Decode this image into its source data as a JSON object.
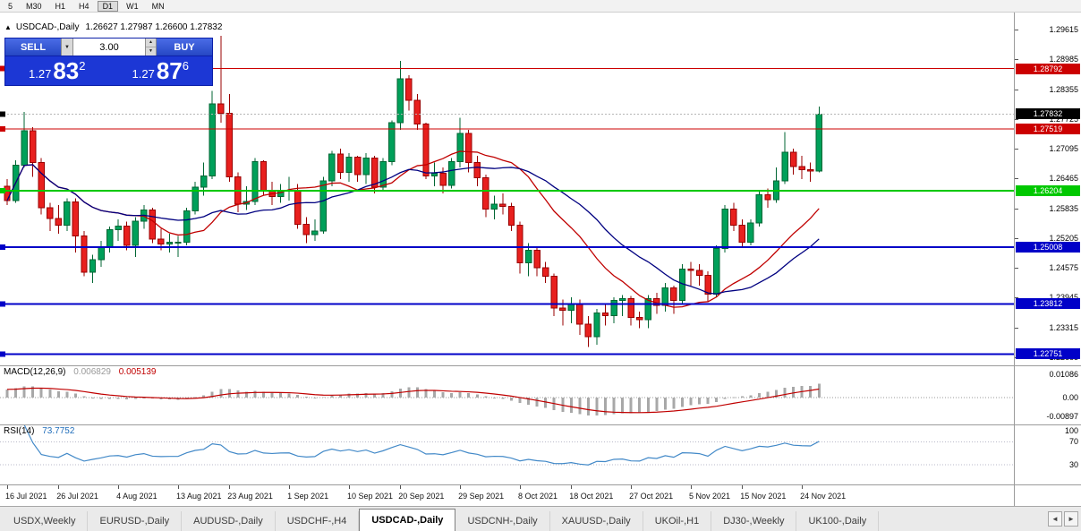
{
  "window": {
    "timeframes": [
      "5",
      "M30",
      "H1",
      "H4",
      "D1",
      "W1",
      "MN"
    ],
    "active_timeframe": "D1"
  },
  "chart": {
    "title": "USDCAD-,Daily",
    "ohlc": "1.26627 1.27987 1.26600 1.27832"
  },
  "trade_panel": {
    "sell_label": "SELL",
    "buy_label": "BUY",
    "volume": "3.00",
    "sell_price": {
      "prefix": "1.27",
      "big": "83",
      "sup": "2"
    },
    "buy_price": {
      "prefix": "1.27",
      "big": "87",
      "sup": "6"
    }
  },
  "indicators": {
    "macd": {
      "name": "MACD(12,26,9)",
      "value": "0.006829",
      "signal_value": "0.005139",
      "fast": 12,
      "slow": 26,
      "signal": 9,
      "range": [
        -0.0126,
        0.0147
      ],
      "axis": [
        {
          "text": "0.01086",
          "v": 0.01086
        },
        {
          "text": "0.00",
          "v": 0
        },
        {
          "text": "-0.00897",
          "v": -0.00897
        }
      ]
    },
    "rsi": {
      "name": "RSI(14)",
      "value": "73.7752",
      "period": 14,
      "range": [
        -5,
        99
      ],
      "guides": [
        70,
        30
      ],
      "axis": [
        {
          "text": "100",
          "v": 100
        },
        {
          "text": "70",
          "v": 70
        },
        {
          "text": "30",
          "v": 30
        }
      ]
    }
  },
  "chart_data": {
    "type": "candlestick",
    "symbol": "USDCAD",
    "period": "Daily",
    "ohlc_current": {
      "open": 1.26627,
      "high": 1.27987,
      "low": 1.266,
      "close": 1.27832
    },
    "y_range": [
      1.2251,
      1.2998
    ],
    "y_ticks": [
      1.29615,
      1.28985,
      1.28355,
      1.27725,
      1.27095,
      1.26465,
      1.25835,
      1.25205,
      1.24575,
      1.23945,
      1.23315,
      1.22685
    ],
    "bid": {
      "value": 1.27832
    },
    "levels": [
      {
        "value": 1.28792,
        "color": "#CC0000",
        "width": 1
      },
      {
        "value": 1.27519,
        "color": "#CC0000",
        "width": 1
      },
      {
        "value": 1.26204,
        "color": "#00C800",
        "width": 2
      },
      {
        "value": 1.25008,
        "color": "#0000C8",
        "width": 2
      },
      {
        "value": 1.23812,
        "color": "#0000C8",
        "width": 2
      },
      {
        "value": 1.22751,
        "color": "#0000C8",
        "width": 2
      }
    ],
    "moving_averages": [
      {
        "type": "sma",
        "period": 16,
        "color": "#C00000"
      },
      {
        "type": "sma",
        "period": 24,
        "color": "#000080"
      }
    ],
    "x_labels": [
      [
        0,
        "16 Jul 2021"
      ],
      [
        6,
        "26 Jul 2021"
      ],
      [
        13,
        "4 Aug 2021"
      ],
      [
        20,
        "13 Aug 2021"
      ],
      [
        26,
        "23 Aug 2021"
      ],
      [
        33,
        "1 Sep 2021"
      ],
      [
        40,
        "10 Sep 2021"
      ],
      [
        46,
        "20 Sep 2021"
      ],
      [
        53,
        "29 Sep 2021"
      ],
      [
        60,
        "8 Oct 2021"
      ],
      [
        66,
        "18 Oct 2021"
      ],
      [
        73,
        "27 Oct 2021"
      ],
      [
        80,
        "5 Nov 2021"
      ],
      [
        86,
        "15 Nov 2021"
      ],
      [
        93,
        "24 Nov 2021"
      ]
    ],
    "candles": [
      [
        1.263,
        1.2645,
        1.259,
        1.26
      ],
      [
        1.26,
        1.2685,
        1.2595,
        1.2675
      ],
      [
        1.2675,
        1.2788,
        1.267,
        1.2748
      ],
      [
        1.2748,
        1.2755,
        1.265,
        1.268
      ],
      [
        1.268,
        1.269,
        1.257,
        1.2585
      ],
      [
        1.2585,
        1.2595,
        1.2535,
        1.2562
      ],
      [
        1.2562,
        1.259,
        1.253,
        1.2548
      ],
      [
        1.2548,
        1.2605,
        1.2535,
        1.2597
      ],
      [
        1.2597,
        1.2605,
        1.249,
        1.2525
      ],
      [
        1.2525,
        1.2535,
        1.244,
        1.2448
      ],
      [
        1.2448,
        1.2485,
        1.2425,
        1.2475
      ],
      [
        1.2475,
        1.2515,
        1.246,
        1.2502
      ],
      [
        1.2502,
        1.2545,
        1.249,
        1.2538
      ],
      [
        1.2538,
        1.256,
        1.2515,
        1.2546
      ],
      [
        1.2546,
        1.2555,
        1.2495,
        1.2505
      ],
      [
        1.2505,
        1.2565,
        1.248,
        1.2556
      ],
      [
        1.2556,
        1.259,
        1.254,
        1.258
      ],
      [
        1.258,
        1.2585,
        1.251,
        1.2518
      ],
      [
        1.2518,
        1.254,
        1.2495,
        1.2508
      ],
      [
        1.2508,
        1.253,
        1.249,
        1.2512
      ],
      [
        1.2512,
        1.2525,
        1.248,
        1.2512
      ],
      [
        1.2512,
        1.2585,
        1.2505,
        1.2578
      ],
      [
        1.2578,
        1.264,
        1.257,
        1.2628
      ],
      [
        1.2628,
        1.268,
        1.261,
        1.2652
      ],
      [
        1.2652,
        1.2832,
        1.2645,
        1.2805
      ],
      [
        1.2805,
        1.2949,
        1.2765,
        1.2785
      ],
      [
        1.2785,
        1.2825,
        1.264,
        1.265
      ],
      [
        1.265,
        1.266,
        1.2575,
        1.2592
      ],
      [
        1.2592,
        1.263,
        1.258,
        1.2598
      ],
      [
        1.2598,
        1.269,
        1.259,
        1.2682
      ],
      [
        1.2682,
        1.2685,
        1.261,
        1.262
      ],
      [
        1.262,
        1.264,
        1.259,
        1.2608
      ],
      [
        1.2608,
        1.2635,
        1.2595,
        1.262
      ],
      [
        1.262,
        1.265,
        1.26,
        1.2622
      ],
      [
        1.2622,
        1.2635,
        1.254,
        1.255
      ],
      [
        1.255,
        1.2565,
        1.251,
        1.2528
      ],
      [
        1.2528,
        1.256,
        1.2515,
        1.2535
      ],
      [
        1.2535,
        1.265,
        1.253,
        1.2642
      ],
      [
        1.2642,
        1.2705,
        1.263,
        1.2698
      ],
      [
        1.2698,
        1.271,
        1.2645,
        1.266
      ],
      [
        1.266,
        1.27,
        1.264,
        1.2692
      ],
      [
        1.2692,
        1.2695,
        1.264,
        1.2655
      ],
      [
        1.2655,
        1.27,
        1.2635,
        1.269
      ],
      [
        1.269,
        1.2695,
        1.2615,
        1.2628
      ],
      [
        1.2628,
        1.269,
        1.262,
        1.2682
      ],
      [
        1.2682,
        1.277,
        1.2675,
        1.2765
      ],
      [
        1.2765,
        1.2896,
        1.275,
        1.2858
      ],
      [
        1.2858,
        1.2865,
        1.279,
        1.2812
      ],
      [
        1.2812,
        1.2825,
        1.275,
        1.2762
      ],
      [
        1.2762,
        1.2765,
        1.2645,
        1.2652
      ],
      [
        1.2652,
        1.268,
        1.263,
        1.2658
      ],
      [
        1.2658,
        1.267,
        1.2615,
        1.2632
      ],
      [
        1.2632,
        1.269,
        1.2625,
        1.2682
      ],
      [
        1.2682,
        1.2775,
        1.267,
        1.2742
      ],
      [
        1.2742,
        1.275,
        1.266,
        1.268
      ],
      [
        1.268,
        1.2695,
        1.263,
        1.2648
      ],
      [
        1.2648,
        1.2655,
        1.2565,
        1.2582
      ],
      [
        1.2582,
        1.261,
        1.256,
        1.2592
      ],
      [
        1.2592,
        1.2615,
        1.257,
        1.2588
      ],
      [
        1.2588,
        1.2595,
        1.2535,
        1.2548
      ],
      [
        1.2548,
        1.2555,
        1.2445,
        1.2468
      ],
      [
        1.2468,
        1.251,
        1.244,
        1.2495
      ],
      [
        1.2495,
        1.25,
        1.244,
        1.2458
      ],
      [
        1.2458,
        1.247,
        1.2425,
        1.244
      ],
      [
        1.244,
        1.2445,
        1.2355,
        1.2372
      ],
      [
        1.2372,
        1.239,
        1.2335,
        1.2368
      ],
      [
        1.2368,
        1.2395,
        1.234,
        1.2382
      ],
      [
        1.2382,
        1.239,
        1.2315,
        1.2338
      ],
      [
        1.2338,
        1.2355,
        1.229,
        1.2312
      ],
      [
        1.2312,
        1.237,
        1.2295,
        1.2362
      ],
      [
        1.2362,
        1.238,
        1.2335,
        1.2356
      ],
      [
        1.2356,
        1.2395,
        1.234,
        1.2388
      ],
      [
        1.2388,
        1.24,
        1.2355,
        1.2392
      ],
      [
        1.2392,
        1.2398,
        1.2335,
        1.2352
      ],
      [
        1.2352,
        1.2365,
        1.233,
        1.2348
      ],
      [
        1.2348,
        1.24,
        1.233,
        1.2392
      ],
      [
        1.2392,
        1.2405,
        1.236,
        1.2378
      ],
      [
        1.2378,
        1.2425,
        1.2365,
        1.2415
      ],
      [
        1.2415,
        1.242,
        1.236,
        1.2388
      ],
      [
        1.2388,
        1.2465,
        1.238,
        1.2455
      ],
      [
        1.2455,
        1.247,
        1.242,
        1.2452
      ],
      [
        1.2452,
        1.2465,
        1.242,
        1.2442
      ],
      [
        1.2442,
        1.245,
        1.2385,
        1.2402
      ],
      [
        1.2402,
        1.2505,
        1.2395,
        1.2498
      ],
      [
        1.2498,
        1.259,
        1.249,
        1.2582
      ],
      [
        1.2582,
        1.2595,
        1.2535,
        1.2548
      ],
      [
        1.2548,
        1.256,
        1.25,
        1.2512
      ],
      [
        1.2512,
        1.256,
        1.2505,
        1.2552
      ],
      [
        1.2552,
        1.262,
        1.2545,
        1.2612
      ],
      [
        1.2612,
        1.2625,
        1.2585,
        1.2602
      ],
      [
        1.2602,
        1.267,
        1.2595,
        1.2642
      ],
      [
        1.2642,
        1.2745,
        1.2635,
        1.2702
      ],
      [
        1.2702,
        1.271,
        1.2655,
        1.2672
      ],
      [
        1.2672,
        1.2695,
        1.2645,
        1.2665
      ],
      [
        1.2665,
        1.268,
        1.264,
        1.2662
      ],
      [
        1.26627,
        1.27987,
        1.266,
        1.27832
      ]
    ]
  },
  "tabs": {
    "items": [
      "USDX,Weekly",
      "EURUSD-,Daily",
      "AUDUSD-,Daily",
      "USDCHF-,H4",
      "USDCAD-,Daily",
      "USDCNH-,Daily",
      "XAUUSD-,Daily",
      "UKOil-,H1",
      "DJ30-,Weekly",
      "UK100-,Daily"
    ],
    "active": "USDCAD-,Daily"
  },
  "colors": {
    "candle_up": "#00A05A",
    "candle_up_border": "#006633",
    "candle_down": "#E8201E",
    "candle_down_border": "#990000",
    "panel_blue": "#1C37D5",
    "macd_hist": "#A8A8A8",
    "macd_signal": "#C00000",
    "rsi_line": "#4289C8"
  }
}
